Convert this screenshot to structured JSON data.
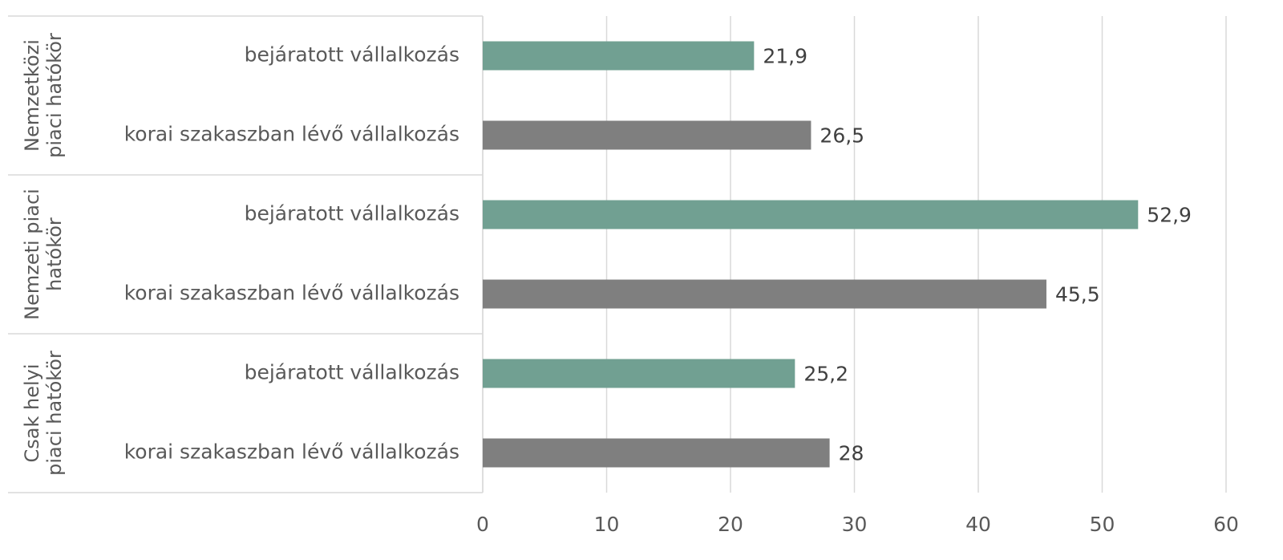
{
  "chart_data": {
    "type": "bar",
    "orientation": "horizontal",
    "groups": [
      {
        "name": "Nemzetközi piaci hatókör",
        "categories": [
          "bejáratott vállalkozás",
          "korai szakaszban lévő vállalkozás"
        ],
        "values": [
          21.9,
          26.5
        ],
        "value_labels": [
          "21,9",
          "26,5"
        ]
      },
      {
        "name": "Nemzeti piaci hatókör",
        "categories": [
          "bejáratott vállalkozás",
          "korai szakaszban lévő vállalkozás"
        ],
        "values": [
          52.9,
          45.5
        ],
        "value_labels": [
          "52,9",
          "45,5"
        ]
      },
      {
        "name": "Csak helyi piaci hatókör",
        "categories": [
          "bejáratott vállalkozás",
          "korai szakaszban lévő vállalkozás"
        ],
        "values": [
          25.2,
          28
        ],
        "value_labels": [
          "25,2",
          "28"
        ]
      }
    ],
    "colors": [
      "#71a092",
      "#7f7f7f"
    ],
    "xlim": [
      0,
      60
    ],
    "xticks": [
      0,
      10,
      20,
      30,
      40,
      50,
      60
    ],
    "grid": true
  }
}
